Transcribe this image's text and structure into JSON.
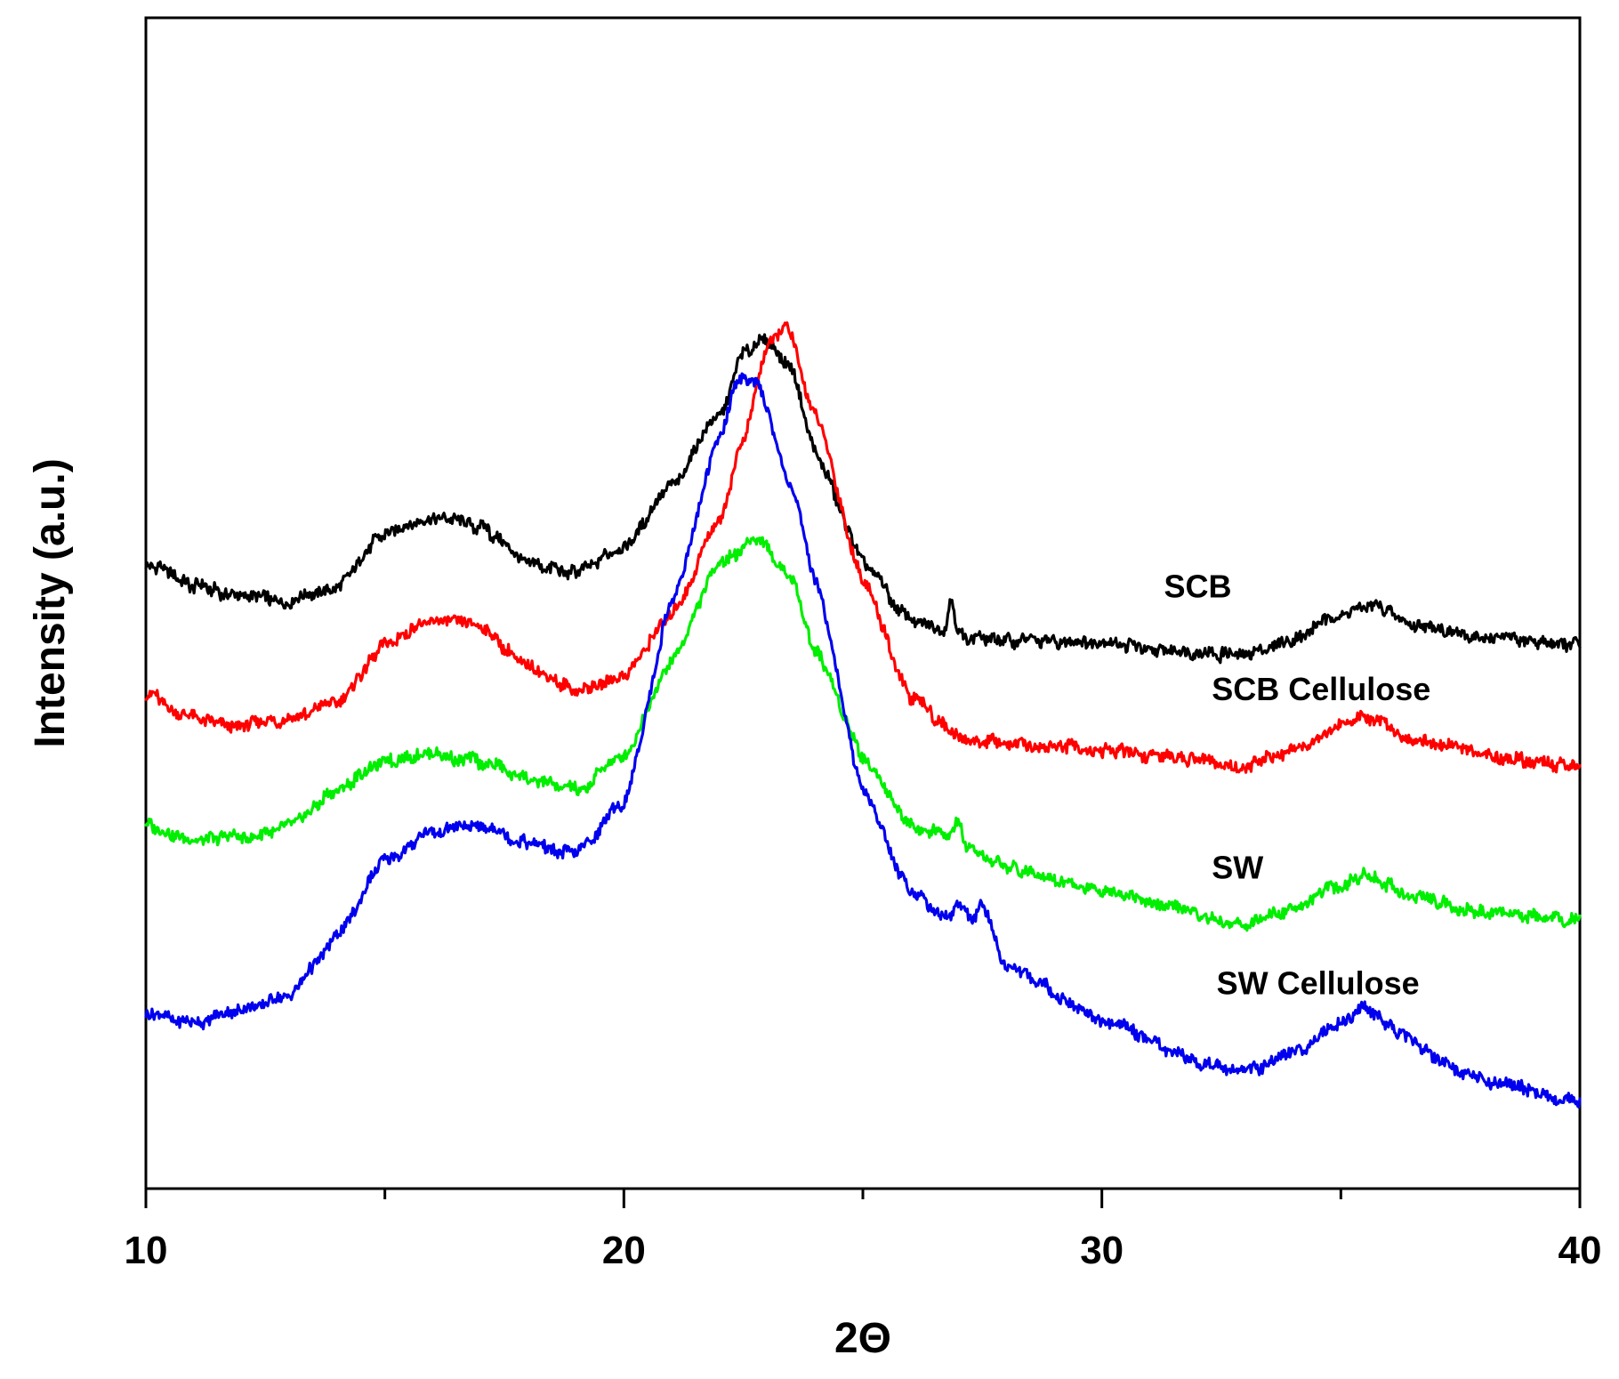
{
  "chart_data": {
    "type": "line",
    "title": "",
    "xlabel": "2Θ",
    "ylabel": "Intensity (a.u.)",
    "xlim": [
      10,
      40
    ],
    "ylim": [
      0,
      100
    ],
    "x_ticks": [
      10,
      20,
      30,
      40
    ],
    "x_tick_labels": [
      "10",
      "20",
      "30",
      "40"
    ],
    "y_ticks_shown": false,
    "grid": false,
    "series": [
      {
        "name": "SCB",
        "color": "#000000",
        "label_at": [
          31.3,
          50.5
        ],
        "points": [
          [
            10,
            53.5
          ],
          [
            11,
            51.5
          ],
          [
            12,
            50.5
          ],
          [
            13,
            50.2
          ],
          [
            14,
            51.5
          ],
          [
            15,
            56
          ],
          [
            16,
            57.5
          ],
          [
            17,
            56.5
          ],
          [
            18,
            53.5
          ],
          [
            19,
            52.5
          ],
          [
            20,
            55
          ],
          [
            21,
            60
          ],
          [
            22,
            66
          ],
          [
            22.5,
            71.5
          ],
          [
            23,
            72.5
          ],
          [
            23.5,
            70
          ],
          [
            24,
            63
          ],
          [
            25,
            53.5
          ],
          [
            26,
            48.5
          ],
          [
            26.7,
            47.6
          ],
          [
            26.85,
            50.5
          ],
          [
            27,
            47.3
          ],
          [
            28,
            46.8
          ],
          [
            30,
            46.6
          ],
          [
            32,
            45.7
          ],
          [
            33,
            45.5
          ],
          [
            34,
            47
          ],
          [
            35,
            49
          ],
          [
            35.6,
            50
          ],
          [
            36.5,
            48.2
          ],
          [
            38,
            47
          ],
          [
            40,
            46.5
          ]
        ]
      },
      {
        "name": "SCB Cellulose",
        "color": "#ff0000",
        "label_at": [
          32.3,
          41.7
        ],
        "points": [
          [
            10,
            42.3
          ],
          [
            11,
            40.2
          ],
          [
            12,
            39.5
          ],
          [
            13,
            40
          ],
          [
            14,
            41.5
          ],
          [
            15,
            46.5
          ],
          [
            16,
            48.5
          ],
          [
            17,
            48
          ],
          [
            18,
            44.5
          ],
          [
            19,
            42.5
          ],
          [
            20,
            44
          ],
          [
            21,
            49
          ],
          [
            22,
            57
          ],
          [
            22.5,
            64
          ],
          [
            23,
            72
          ],
          [
            23.4,
            73.8
          ],
          [
            24,
            66
          ],
          [
            25,
            52
          ],
          [
            26,
            42
          ],
          [
            27,
            38.5
          ],
          [
            28,
            38
          ],
          [
            30,
            37.5
          ],
          [
            32,
            36.5
          ],
          [
            33,
            36
          ],
          [
            34,
            37.5
          ],
          [
            35,
            39.5
          ],
          [
            35.5,
            40.3
          ],
          [
            36.5,
            38.5
          ],
          [
            38,
            37
          ],
          [
            40,
            36
          ]
        ]
      },
      {
        "name": "SW",
        "color": "#00ee00",
        "label_at": [
          32.3,
          26.5
        ],
        "points": [
          [
            10,
            31
          ],
          [
            11,
            29.8
          ],
          [
            12,
            30
          ],
          [
            13,
            31
          ],
          [
            14,
            34
          ],
          [
            15,
            36.5
          ],
          [
            16,
            37
          ],
          [
            17,
            36.5
          ],
          [
            18,
            35
          ],
          [
            19,
            34
          ],
          [
            20,
            37
          ],
          [
            21,
            45
          ],
          [
            22,
            53.5
          ],
          [
            22.8,
            55.5
          ],
          [
            23.5,
            52
          ],
          [
            24,
            46
          ],
          [
            25,
            37
          ],
          [
            26,
            31
          ],
          [
            26.8,
            30
          ],
          [
            27,
            31.5
          ],
          [
            27.2,
            29
          ],
          [
            28,
            27.5
          ],
          [
            30,
            25.5
          ],
          [
            32,
            23.5
          ],
          [
            33,
            22.5
          ],
          [
            34,
            24
          ],
          [
            35,
            26
          ],
          [
            35.5,
            26.8
          ],
          [
            36.5,
            25
          ],
          [
            38,
            23.5
          ],
          [
            40,
            23
          ]
        ]
      },
      {
        "name": "SW Cellulose",
        "color": "#0000ee",
        "label_at": [
          32.4,
          16.6
        ],
        "points": [
          [
            10,
            14.8
          ],
          [
            11,
            14.2
          ],
          [
            12,
            15.2
          ],
          [
            13,
            16.5
          ],
          [
            14,
            21.5
          ],
          [
            15,
            28
          ],
          [
            16,
            30.5
          ],
          [
            17,
            31
          ],
          [
            18,
            29.5
          ],
          [
            19,
            28.5
          ],
          [
            20,
            33
          ],
          [
            21,
            50
          ],
          [
            22,
            64
          ],
          [
            22.4,
            69.5
          ],
          [
            22.8,
            69
          ],
          [
            23.5,
            60
          ],
          [
            24,
            52
          ],
          [
            25,
            34
          ],
          [
            26,
            25.5
          ],
          [
            26.8,
            23
          ],
          [
            27,
            24.5
          ],
          [
            27.3,
            22.5
          ],
          [
            27.5,
            24.5
          ],
          [
            28,
            19
          ],
          [
            30,
            14.5
          ],
          [
            32,
            10.8
          ],
          [
            33,
            10
          ],
          [
            34,
            11.5
          ],
          [
            35,
            14.2
          ],
          [
            35.5,
            15.5
          ],
          [
            36.5,
            12.5
          ],
          [
            37.5,
            10
          ],
          [
            38,
            9.2
          ],
          [
            40,
            7.5
          ]
        ]
      }
    ]
  }
}
